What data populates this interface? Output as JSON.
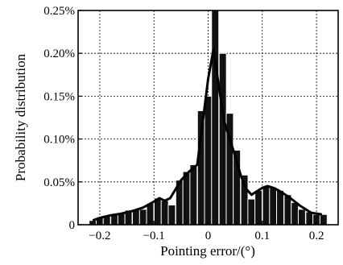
{
  "chart_data": {
    "type": "bar",
    "title": "",
    "xlabel": "Pointing error/(°)",
    "ylabel": "Probability distribution",
    "xlim": [
      -0.24,
      0.24
    ],
    "ylim": [
      0,
      0.25
    ],
    "grid": true,
    "legend": "none",
    "x_ticks": [
      -0.2,
      -0.1,
      0,
      0.1,
      0.2
    ],
    "x_tick_labels": [
      "−0.2",
      "−0.1",
      "0",
      "0.1",
      "0.2"
    ],
    "y_ticks": [
      0,
      0.05,
      0.1,
      0.15,
      0.2,
      0.25
    ],
    "y_tick_labels": [
      "0",
      "0.05%",
      "0.10%",
      "0.15%",
      "0.20%",
      "0.25%"
    ],
    "bin_width": 0.0133,
    "bins": [
      {
        "x": -0.213,
        "y": 0.005
      },
      {
        "x": -0.2,
        "y": 0.008
      },
      {
        "x": -0.187,
        "y": 0.011
      },
      {
        "x": -0.173,
        "y": 0.012
      },
      {
        "x": -0.16,
        "y": 0.014
      },
      {
        "x": -0.147,
        "y": 0.017
      },
      {
        "x": -0.133,
        "y": 0.018
      },
      {
        "x": -0.12,
        "y": 0.018
      },
      {
        "x": -0.107,
        "y": 0.025
      },
      {
        "x": -0.093,
        "y": 0.031
      },
      {
        "x": -0.08,
        "y": 0.028
      },
      {
        "x": -0.067,
        "y": 0.023
      },
      {
        "x": -0.053,
        "y": 0.052
      },
      {
        "x": -0.04,
        "y": 0.062
      },
      {
        "x": -0.027,
        "y": 0.07
      },
      {
        "x": -0.013,
        "y": 0.133
      },
      {
        "x": 0.0,
        "y": 0.15
      },
      {
        "x": 0.013,
        "y": 0.25
      },
      {
        "x": 0.027,
        "y": 0.2
      },
      {
        "x": 0.04,
        "y": 0.13
      },
      {
        "x": 0.053,
        "y": 0.087
      },
      {
        "x": 0.067,
        "y": 0.058
      },
      {
        "x": 0.08,
        "y": 0.03
      },
      {
        "x": 0.093,
        "y": 0.04
      },
      {
        "x": 0.107,
        "y": 0.045
      },
      {
        "x": 0.12,
        "y": 0.044
      },
      {
        "x": 0.133,
        "y": 0.04
      },
      {
        "x": 0.147,
        "y": 0.035
      },
      {
        "x": 0.16,
        "y": 0.026
      },
      {
        "x": 0.173,
        "y": 0.018
      },
      {
        "x": 0.187,
        "y": 0.015
      },
      {
        "x": 0.2,
        "y": 0.012
      },
      {
        "x": 0.213,
        "y": 0.012
      }
    ],
    "fit_curve": {
      "x": [
        -0.213,
        -0.2,
        -0.18,
        -0.16,
        -0.14,
        -0.12,
        -0.1,
        -0.09,
        -0.08,
        -0.07,
        -0.05,
        -0.035,
        -0.02,
        -0.01,
        0.0,
        0.01,
        0.02,
        0.03,
        0.04,
        0.05,
        0.06,
        0.07,
        0.08,
        0.09,
        0.1,
        0.11,
        0.12,
        0.13,
        0.15,
        0.17,
        0.19,
        0.21
      ],
      "y": [
        0.005,
        0.008,
        0.011,
        0.013,
        0.016,
        0.02,
        0.027,
        0.031,
        0.028,
        0.031,
        0.052,
        0.062,
        0.07,
        0.12,
        0.17,
        0.205,
        0.16,
        0.12,
        0.1,
        0.08,
        0.058,
        0.042,
        0.035,
        0.039,
        0.043,
        0.045,
        0.043,
        0.04,
        0.032,
        0.022,
        0.014,
        0.012
      ]
    },
    "colors": {
      "bar": "#111111",
      "bar_edge": "#ffffff",
      "curve": "#000000",
      "grid": "#000000"
    }
  }
}
